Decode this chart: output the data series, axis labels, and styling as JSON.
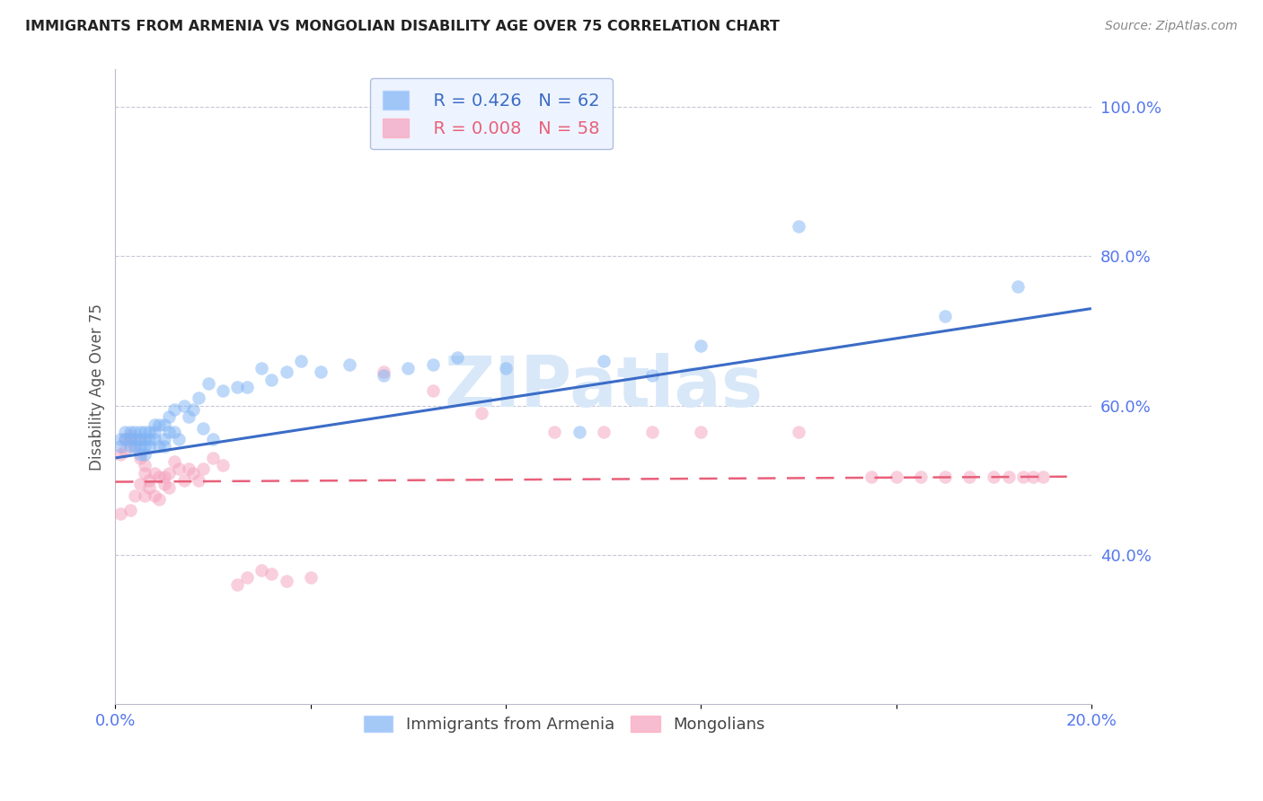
{
  "title": "IMMIGRANTS FROM ARMENIA VS MONGOLIAN DISABILITY AGE OVER 75 CORRELATION CHART",
  "source": "Source: ZipAtlas.com",
  "ylabel": "Disability Age Over 75",
  "x_min": 0.0,
  "x_max": 0.2,
  "y_min": 0.2,
  "y_max": 1.05,
  "x_ticks": [
    0.0,
    0.04,
    0.08,
    0.12,
    0.16,
    0.2
  ],
  "x_tick_labels": [
    "0.0%",
    "",
    "",
    "",
    "",
    "20.0%"
  ],
  "y_ticks": [
    0.4,
    0.6,
    0.8,
    1.0
  ],
  "y_tick_labels": [
    "40.0%",
    "60.0%",
    "80.0%",
    "100.0%"
  ],
  "legend_r_armenia": "R = 0.426",
  "legend_n_armenia": "N = 62",
  "legend_r_mongolian": "R = 0.008",
  "legend_n_mongolian": "N = 58",
  "color_armenia": "#7EB3F5",
  "color_mongolian": "#F5A0BC",
  "color_armenia_line": "#3B6CC7",
  "color_mongolian_line": "#E8607A",
  "watermark": "ZIPatlas",
  "armenia_x": [
    0.001,
    0.001,
    0.002,
    0.002,
    0.003,
    0.003,
    0.003,
    0.004,
    0.004,
    0.004,
    0.005,
    0.005,
    0.005,
    0.005,
    0.006,
    0.006,
    0.006,
    0.006,
    0.007,
    0.007,
    0.007,
    0.008,
    0.008,
    0.008,
    0.009,
    0.009,
    0.01,
    0.01,
    0.01,
    0.011,
    0.011,
    0.012,
    0.012,
    0.013,
    0.014,
    0.015,
    0.016,
    0.017,
    0.018,
    0.019,
    0.02,
    0.022,
    0.025,
    0.027,
    0.03,
    0.032,
    0.035,
    0.038,
    0.042,
    0.048,
    0.055,
    0.06,
    0.065,
    0.07,
    0.08,
    0.095,
    0.1,
    0.11,
    0.12,
    0.14,
    0.17,
    0.185
  ],
  "armenia_y": [
    0.555,
    0.545,
    0.565,
    0.555,
    0.545,
    0.555,
    0.565,
    0.555,
    0.545,
    0.565,
    0.545,
    0.555,
    0.535,
    0.565,
    0.555,
    0.545,
    0.535,
    0.565,
    0.555,
    0.565,
    0.545,
    0.575,
    0.555,
    0.565,
    0.545,
    0.575,
    0.545,
    0.575,
    0.555,
    0.565,
    0.585,
    0.565,
    0.595,
    0.555,
    0.6,
    0.585,
    0.595,
    0.61,
    0.57,
    0.63,
    0.555,
    0.62,
    0.625,
    0.625,
    0.65,
    0.635,
    0.645,
    0.66,
    0.645,
    0.655,
    0.64,
    0.65,
    0.655,
    0.665,
    0.65,
    0.565,
    0.66,
    0.64,
    0.68,
    0.84,
    0.72,
    0.76
  ],
  "mongolian_x": [
    0.001,
    0.001,
    0.002,
    0.002,
    0.003,
    0.003,
    0.003,
    0.004,
    0.004,
    0.005,
    0.005,
    0.005,
    0.006,
    0.006,
    0.006,
    0.007,
    0.007,
    0.008,
    0.008,
    0.009,
    0.009,
    0.01,
    0.01,
    0.011,
    0.011,
    0.012,
    0.013,
    0.014,
    0.015,
    0.016,
    0.017,
    0.018,
    0.02,
    0.022,
    0.025,
    0.027,
    0.03,
    0.032,
    0.035,
    0.04,
    0.055,
    0.065,
    0.075,
    0.09,
    0.1,
    0.11,
    0.12,
    0.14,
    0.155,
    0.16,
    0.165,
    0.17,
    0.175,
    0.18,
    0.183,
    0.186,
    0.188,
    0.19
  ],
  "mongolian_y": [
    0.535,
    0.455,
    0.555,
    0.54,
    0.56,
    0.555,
    0.46,
    0.545,
    0.48,
    0.555,
    0.495,
    0.53,
    0.52,
    0.51,
    0.48,
    0.5,
    0.49,
    0.51,
    0.48,
    0.505,
    0.475,
    0.495,
    0.505,
    0.49,
    0.51,
    0.525,
    0.515,
    0.5,
    0.515,
    0.51,
    0.5,
    0.515,
    0.53,
    0.52,
    0.36,
    0.37,
    0.38,
    0.375,
    0.365,
    0.37,
    0.645,
    0.62,
    0.59,
    0.565,
    0.565,
    0.565,
    0.565,
    0.565,
    0.505,
    0.505,
    0.505,
    0.505,
    0.505,
    0.505,
    0.505,
    0.505,
    0.505,
    0.505
  ],
  "armenia_line_x": [
    0.0,
    0.2
  ],
  "armenia_line_y": [
    0.53,
    0.73
  ],
  "mongolian_line_x": [
    0.0,
    0.195
  ],
  "mongolian_line_y": [
    0.498,
    0.505
  ],
  "background_color": "#FFFFFF",
  "grid_color": "#C8C8D8",
  "title_color": "#333333",
  "axis_color": "#5577EE",
  "watermark_color": "#D8E8F8",
  "legend_box_color": "#EEF4FF"
}
